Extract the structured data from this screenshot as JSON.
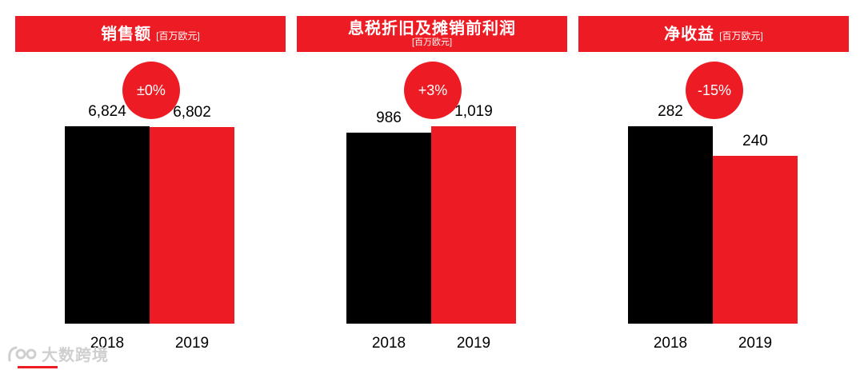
{
  "chart_data": [
    {
      "type": "bar",
      "title": "销售额",
      "unit": "[百万欧元]",
      "categories": [
        "2018",
        "2019"
      ],
      "values": [
        6824,
        6802
      ],
      "value_labels": [
        "6,824",
        "6,802"
      ],
      "change_label": "±0%",
      "colors": [
        "#000000",
        "#ED1C24"
      ]
    },
    {
      "type": "bar",
      "title": "息税折旧及摊销前利润",
      "unit": "[百万欧元]",
      "categories": [
        "2018",
        "2019"
      ],
      "values": [
        986,
        1019
      ],
      "value_labels": [
        "986",
        "1,019"
      ],
      "change_label": "+3%",
      "colors": [
        "#000000",
        "#ED1C24"
      ]
    },
    {
      "type": "bar",
      "title": "净收益",
      "unit": "[百万欧元]",
      "categories": [
        "2018",
        "2019"
      ],
      "values": [
        282,
        240
      ],
      "value_labels": [
        "282",
        "240"
      ],
      "change_label": "-15%",
      "colors": [
        "#000000",
        "#ED1C24"
      ]
    }
  ],
  "watermark": {
    "text": "大数跨境",
    "icon": "brand-logo-icon"
  }
}
